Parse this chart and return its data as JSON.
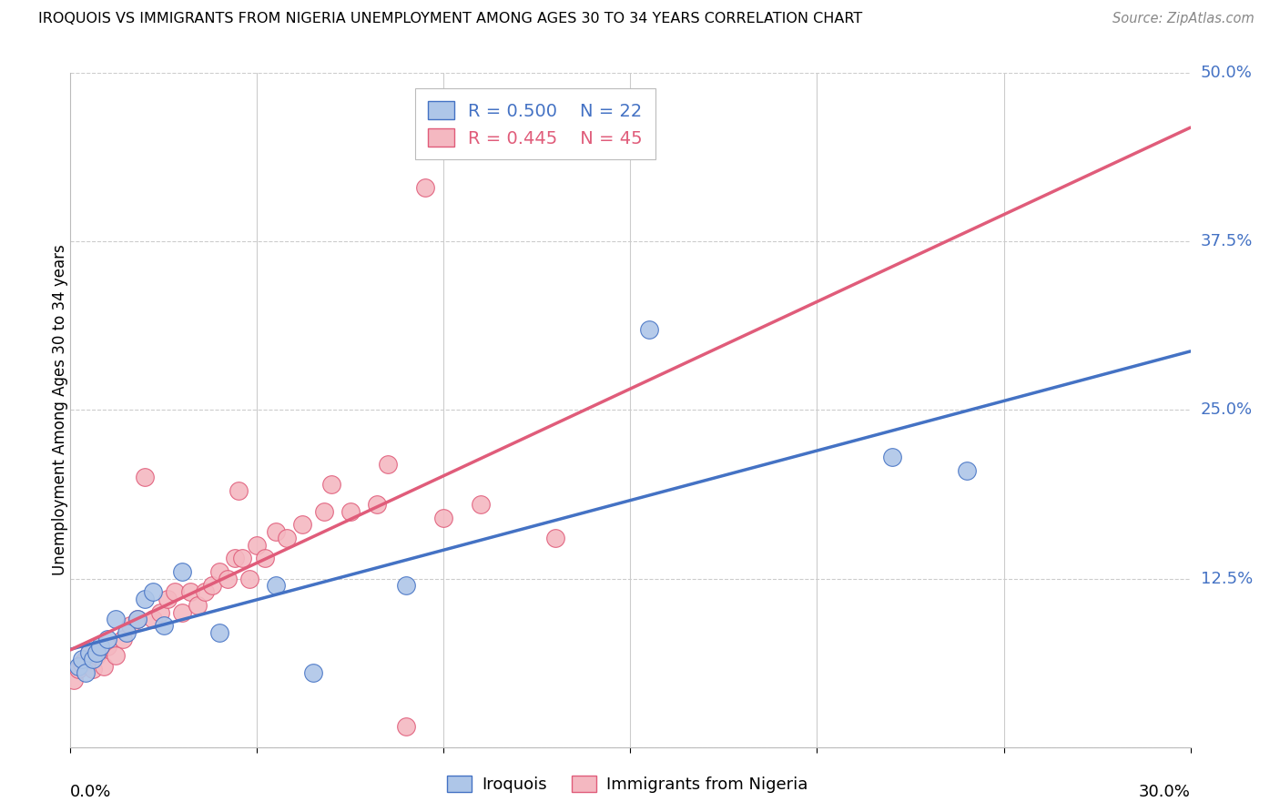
{
  "title": "IROQUOIS VS IMMIGRANTS FROM NIGERIA UNEMPLOYMENT AMONG AGES 30 TO 34 YEARS CORRELATION CHART",
  "source": "Source: ZipAtlas.com",
  "ylabel": "Unemployment Among Ages 30 to 34 years",
  "ytick_labels": [
    "",
    "12.5%",
    "25.0%",
    "37.5%",
    "50.0%"
  ],
  "ytick_values": [
    0.0,
    0.125,
    0.25,
    0.375,
    0.5
  ],
  "xlim": [
    0.0,
    0.3
  ],
  "ylim": [
    0.0,
    0.5
  ],
  "iroquois_color": "#aec6e8",
  "iroquois_edge_color": "#4472c4",
  "nigeria_color": "#f4b8c1",
  "nigeria_edge_color": "#e05c7a",
  "iroquois_line_color": "#4472c4",
  "nigeria_line_color": "#e05c7a",
  "ytick_color": "#4472c4",
  "iroquois_R": "0.500",
  "iroquois_N": "22",
  "nigeria_R": "0.445",
  "nigeria_N": "45",
  "iroquois_scatter_x": [
    0.002,
    0.003,
    0.004,
    0.005,
    0.006,
    0.007,
    0.008,
    0.01,
    0.012,
    0.015,
    0.018,
    0.02,
    0.022,
    0.025,
    0.03,
    0.04,
    0.055,
    0.065,
    0.09,
    0.155,
    0.22,
    0.24
  ],
  "iroquois_scatter_y": [
    0.06,
    0.065,
    0.055,
    0.07,
    0.065,
    0.07,
    0.075,
    0.08,
    0.095,
    0.085,
    0.095,
    0.11,
    0.115,
    0.09,
    0.13,
    0.085,
    0.12,
    0.055,
    0.12,
    0.31,
    0.215,
    0.205
  ],
  "nigeria_scatter_x": [
    0.001,
    0.002,
    0.003,
    0.004,
    0.005,
    0.006,
    0.007,
    0.008,
    0.009,
    0.01,
    0.012,
    0.014,
    0.016,
    0.018,
    0.02,
    0.022,
    0.024,
    0.026,
    0.028,
    0.03,
    0.032,
    0.034,
    0.036,
    0.038,
    0.04,
    0.042,
    0.044,
    0.046,
    0.048,
    0.05,
    0.055,
    0.058,
    0.062,
    0.068,
    0.075,
    0.082,
    0.09,
    0.1,
    0.11,
    0.13,
    0.045,
    0.052,
    0.07,
    0.085,
    0.095
  ],
  "nigeria_scatter_y": [
    0.05,
    0.058,
    0.062,
    0.065,
    0.07,
    0.058,
    0.068,
    0.072,
    0.06,
    0.075,
    0.068,
    0.08,
    0.09,
    0.095,
    0.2,
    0.095,
    0.1,
    0.11,
    0.115,
    0.1,
    0.115,
    0.105,
    0.115,
    0.12,
    0.13,
    0.125,
    0.14,
    0.14,
    0.125,
    0.15,
    0.16,
    0.155,
    0.165,
    0.175,
    0.175,
    0.18,
    0.015,
    0.17,
    0.18,
    0.155,
    0.19,
    0.14,
    0.195,
    0.21,
    0.415
  ],
  "background_color": "#ffffff",
  "grid_color": "#cccccc"
}
